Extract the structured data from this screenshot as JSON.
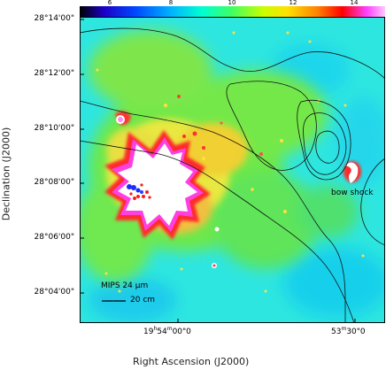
{
  "colorbar": {
    "labels": [
      "6",
      "8",
      "10",
      "12",
      "14"
    ]
  },
  "axes": {
    "ylabel": "Declination (J2000)",
    "xlabel": "Right Ascension (J2000)",
    "yticks": [
      "28°14'00\"",
      "28°12'00\"",
      "28°10'00\"",
      "28°08'00\"",
      "28°06'00\"",
      "28°04'00\""
    ],
    "xticks": [
      {
        "h": "19",
        "hs": "h",
        "m": "54",
        "ms": "m",
        "s": "00\"0"
      },
      {
        "h": "",
        "hs": "",
        "m": "53",
        "ms": "m",
        "s": "30\"0"
      }
    ]
  },
  "annotations": {
    "bow_shock": "bow shock",
    "instrument": "MIPS 24 μm",
    "scale": "20 cm"
  },
  "colors": {
    "background_cyan": "#2ee6e0",
    "emission_green": "#7fe84a",
    "emission_yellow": "#f0e040",
    "emission_red": "#ff2a2a",
    "saturated": "#ffffff"
  }
}
